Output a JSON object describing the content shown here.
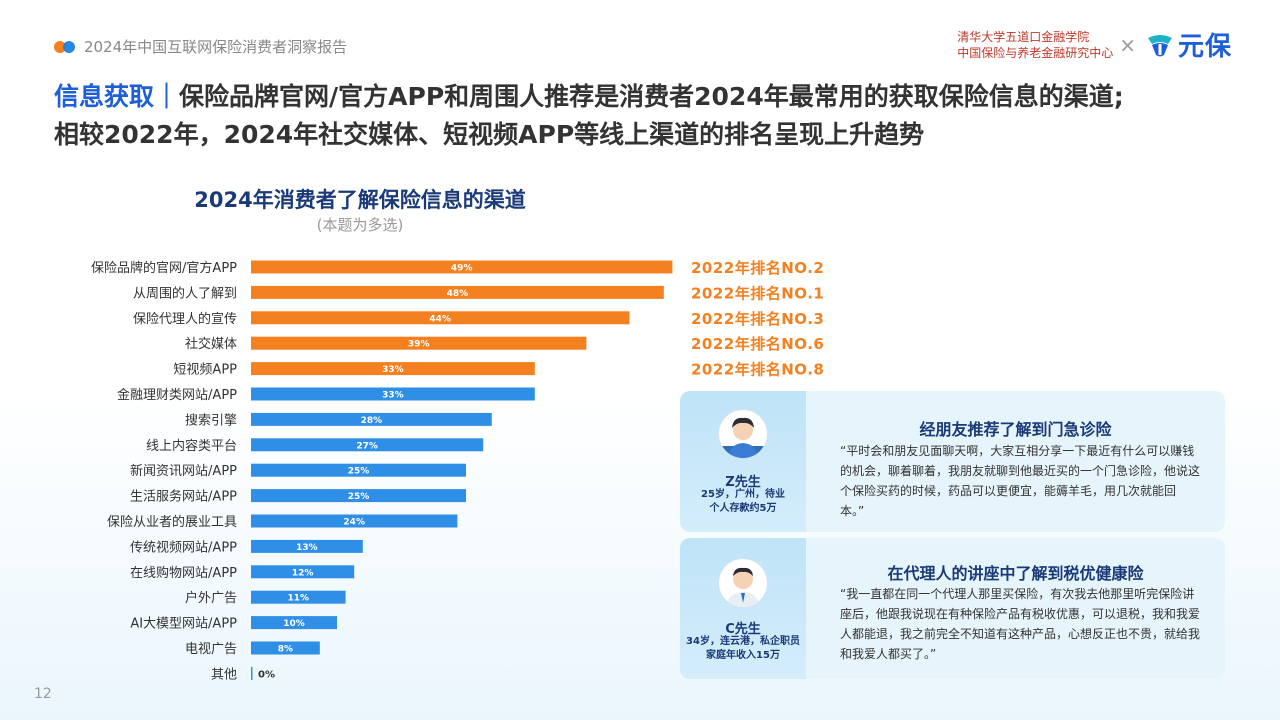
{
  "header": {
    "report_title": "2024年中国互联网保险消费者洞察报告",
    "institution_line1": "清华大学五道口金融学院",
    "institution_line2": "中国保险与养老金融研究中心",
    "times": "×",
    "brand": "元保"
  },
  "headline": {
    "accent": "信息获取｜",
    "line1": "保险品牌官网/官方APP和周围人推荐是消费者2024年最常用的获取保险信息的渠道;",
    "line2": "相较2022年，2024年社交媒体、短视频APP等线上渠道的排名呈现上升趋势"
  },
  "chart_data": {
    "type": "bar",
    "orientation": "horizontal",
    "title": "2024年消费者了解保险信息的渠道",
    "subtitle": "(本题为多选)",
    "categories": [
      "保险品牌的官网/官方APP",
      "从周围的人了解到",
      "保险代理人的宣传",
      "社交媒体",
      "短视频APP",
      "金融理财类网站/APP",
      "搜索引擎",
      "线上内容类平台",
      "新闻资讯网站/APP",
      "生活服务网站/APP",
      "保险从业者的展业工具",
      "传统视频网站/APP",
      "在线购物网站/APP",
      "户外广告",
      "AI大模型网站/APP",
      "电视广告",
      "其他"
    ],
    "values": [
      49,
      48,
      44,
      39,
      33,
      33,
      28,
      27,
      25,
      25,
      24,
      13,
      12,
      11,
      10,
      8,
      0
    ],
    "value_labels": [
      "49%",
      "48%",
      "44%",
      "39%",
      "33%",
      "33%",
      "28%",
      "27%",
      "25%",
      "25%",
      "24%",
      "13%",
      "12%",
      "11%",
      "10%",
      "8%",
      "0%"
    ],
    "highlight_count": 5,
    "colors": {
      "highlight": "#f5801f",
      "normal": "#2f8fe6"
    },
    "rank_2022": [
      "2022年排名NO.2",
      "2022年排名NO.1",
      "2022年排名NO.3",
      "2022年排名NO.6",
      "2022年排名NO.8"
    ]
  },
  "cards": [
    {
      "name": "Z先生",
      "info1": "25岁，广州，待业",
      "info2": "个人存款约5万",
      "title": "经朋友推荐了解到门急诊险",
      "quote": "“平时会和朋友见面聊天啊，大家互相分享一下最近有什么可以赚钱的机会，聊着聊着，我朋友就聊到他最近买的一个门急诊险，他说这个保险买药的时候，药品可以更便宜，能薅羊毛，用几次就能回本。”"
    },
    {
      "name": "C先生",
      "info1": "34岁，连云港，私企职员",
      "info2": "家庭年收入15万",
      "title": "在代理人的讲座中了解到税优健康险",
      "quote": "“我一直都在同一个代理人那里买保险，有次我去他那里听完保险讲座后，他跟我说现在有种保险产品有税收优惠，可以退税，我和我爱人都能退，我之前完全不知道有这种产品，心想反正也不贵，就给我和我爱人都买了。”"
    }
  ],
  "page_number": "12"
}
